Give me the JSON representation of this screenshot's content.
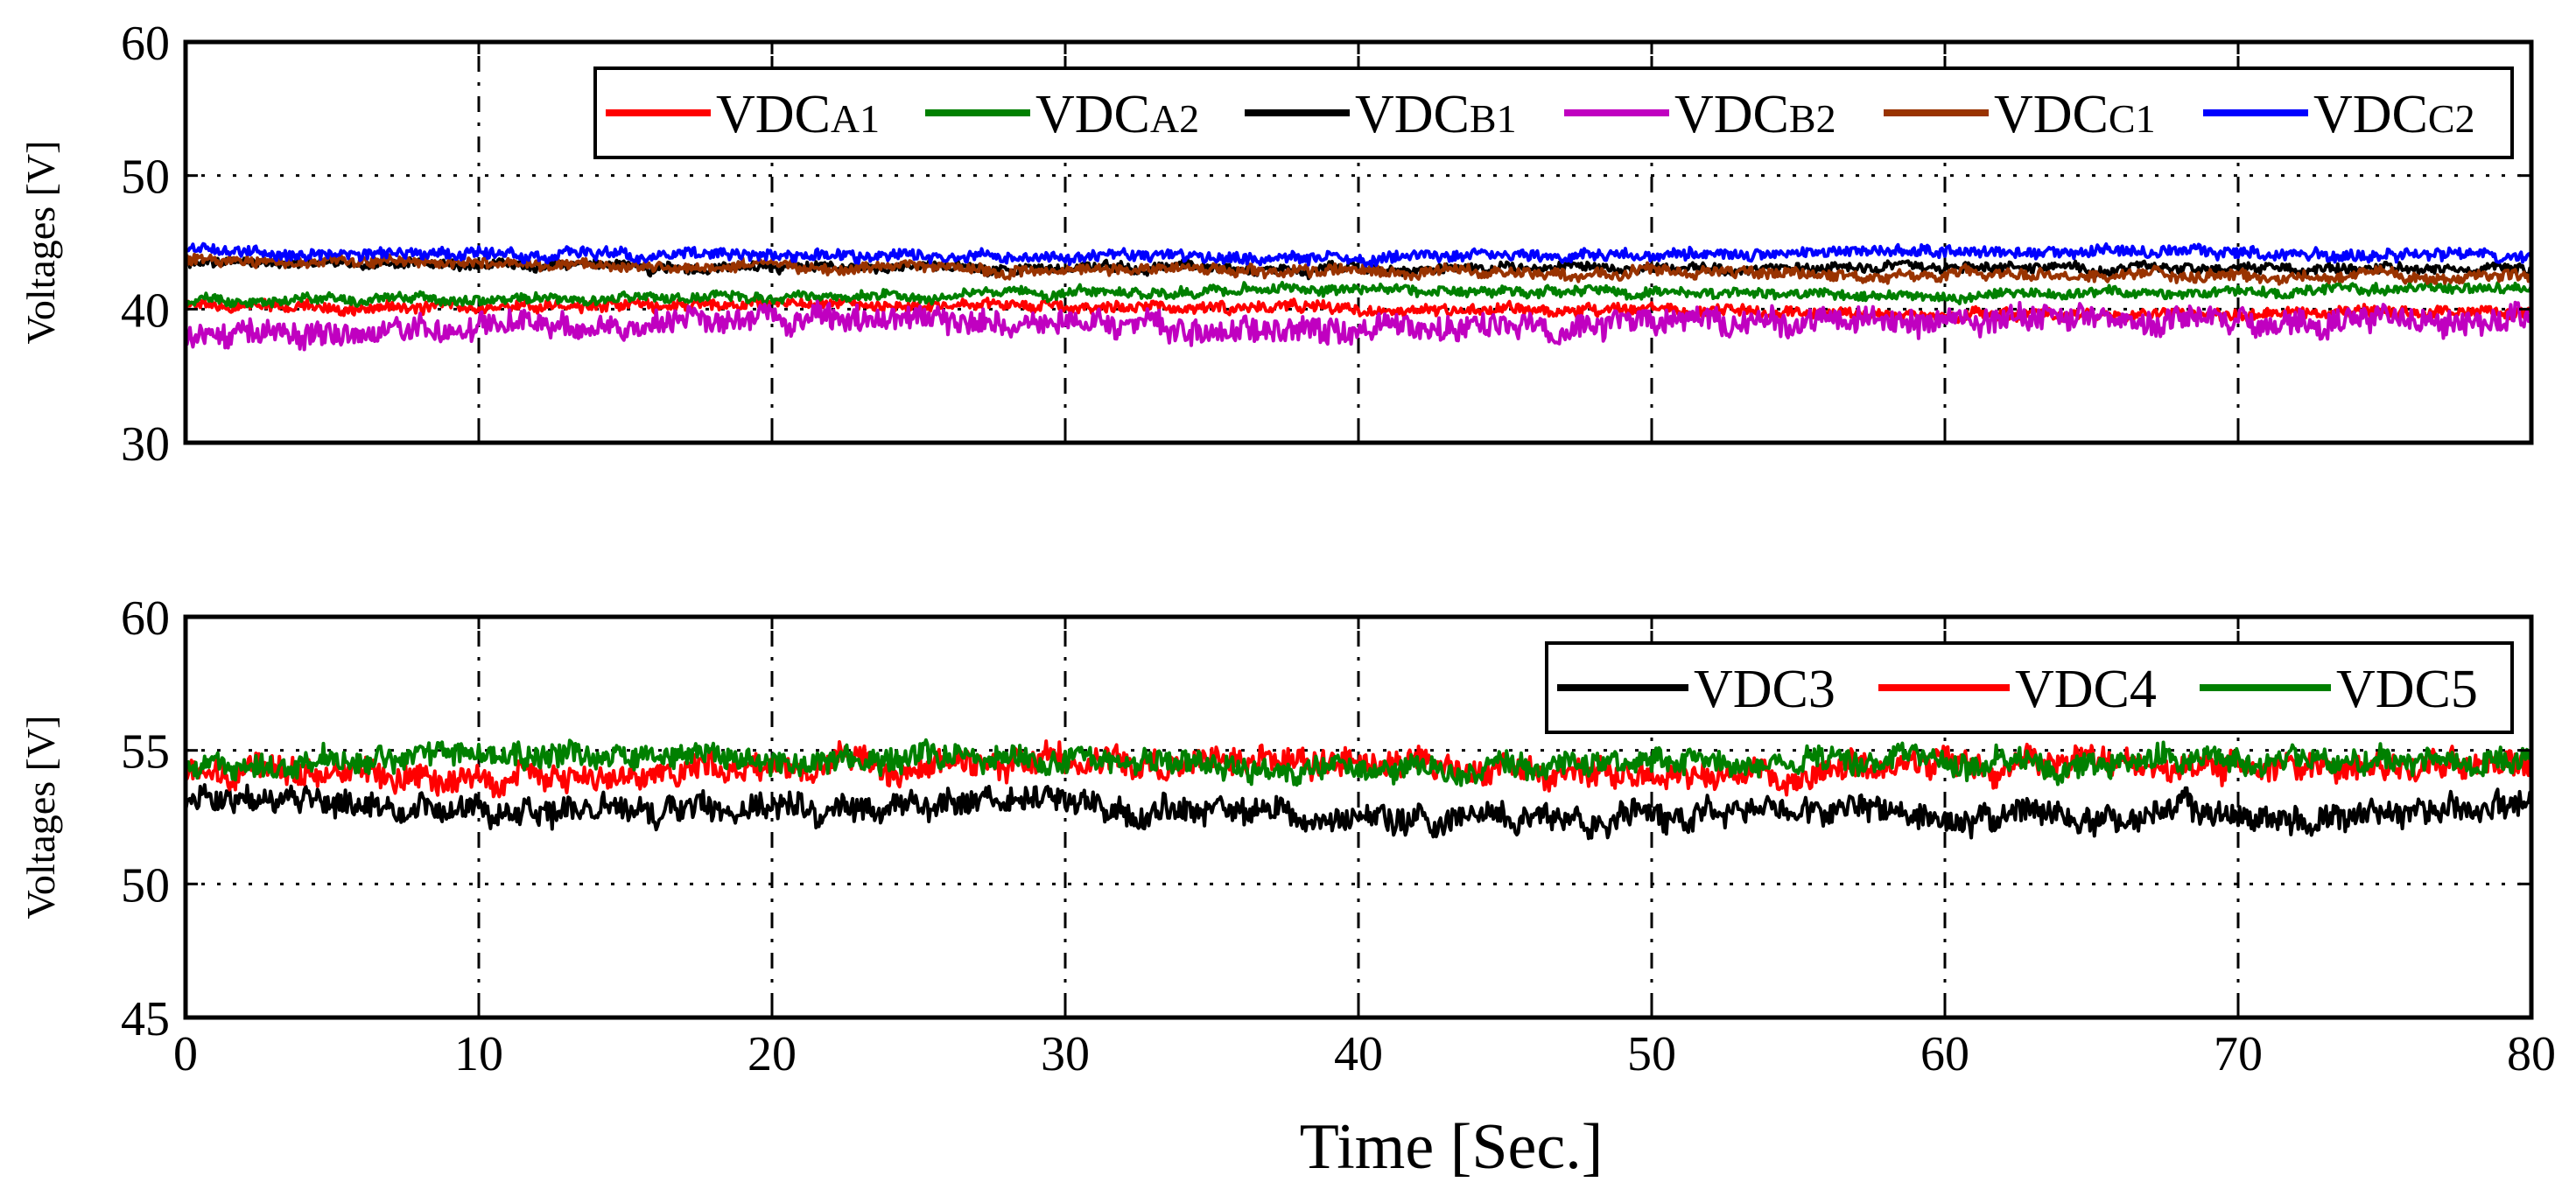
{
  "chart_data": [
    {
      "type": "line",
      "ylabel": "Voltages [V]",
      "xlim": [
        0,
        80
      ],
      "ylim": [
        30,
        60
      ],
      "xticks": [
        0,
        10,
        20,
        30,
        40,
        50,
        60,
        70,
        80
      ],
      "yticks": [
        30,
        40,
        50,
        60
      ],
      "x_grid": "dash-dot",
      "y_grid": "dotted",
      "grid": true,
      "legend_position": "top-right",
      "series": [
        {
          "name": "VDC",
          "sub": "A1",
          "color": "#ff0000",
          "mean": 40.1,
          "noise": 0.45,
          "points": [
            [
              0,
              40.1
            ],
            [
              20,
              40.3
            ],
            [
              40,
              40.1
            ],
            [
              60,
              39.6
            ],
            [
              80,
              39.8
            ]
          ]
        },
        {
          "name": "VDC",
          "sub": "A2",
          "color": "#008000",
          "mean": 40.8,
          "noise": 0.4,
          "points": [
            [
              0,
              40.6
            ],
            [
              20,
              40.9
            ],
            [
              40,
              41.6
            ],
            [
              60,
              41.0
            ],
            [
              80,
              41.6
            ]
          ]
        },
        {
          "name": "VDC",
          "sub": "B1",
          "color": "#000000",
          "mean": 43.3,
          "noise": 0.4,
          "points": [
            [
              0,
              43.4
            ],
            [
              20,
              43.2
            ],
            [
              40,
              43.0
            ],
            [
              60,
              43.1
            ],
            [
              80,
              43.0
            ]
          ]
        },
        {
          "name": "VDC",
          "sub": "B2",
          "color": "#c000c0",
          "mean": 38.8,
          "noise": 1.0,
          "points": [
            [
              0,
              37.9
            ],
            [
              20,
              39.3
            ],
            [
              40,
              38.5
            ],
            [
              60,
              39.2
            ],
            [
              80,
              39.2
            ]
          ]
        },
        {
          "name": "VDC",
          "sub": "C1",
          "color": "#993300",
          "mean": 43.0,
          "noise": 0.45,
          "points": [
            [
              0,
              43.7
            ],
            [
              20,
              43.2
            ],
            [
              40,
              42.8
            ],
            [
              60,
              42.6
            ],
            [
              80,
              42.3
            ]
          ]
        },
        {
          "name": "VDC",
          "sub": "C2",
          "color": "#0000ff",
          "mean": 44.2,
          "noise": 0.45,
          "points": [
            [
              0,
              44.3
            ],
            [
              20,
              44.0
            ],
            [
              40,
              43.9
            ],
            [
              60,
              44.3
            ],
            [
              80,
              44.0
            ]
          ]
        }
      ]
    },
    {
      "type": "line",
      "ylabel": "Voltages [V]",
      "xlabel": "Time [Sec.]",
      "xlim": [
        0,
        80
      ],
      "ylim": [
        45,
        60
      ],
      "xticks": [
        0,
        10,
        20,
        30,
        40,
        50,
        60,
        70,
        80
      ],
      "yticks": [
        45,
        50,
        55,
        60
      ],
      "x_grid": "dash-dot",
      "y_grid": "dotted",
      "grid": true,
      "legend_position": "top-right",
      "series": [
        {
          "name": "VDC3",
          "sub": "",
          "color": "#000000",
          "mean": 52.8,
          "noise": 0.55,
          "points": [
            [
              0,
              53.2
            ],
            [
              10,
              52.8
            ],
            [
              20,
              52.9
            ],
            [
              30,
              53.0
            ],
            [
              40,
              52.4
            ],
            [
              50,
              52.6
            ],
            [
              60,
              52.7
            ],
            [
              70,
              52.4
            ],
            [
              80,
              53.0
            ]
          ]
        },
        {
          "name": "VDC4",
          "sub": "",
          "color": "#ff0000",
          "mean": 54.3,
          "noise": 0.55,
          "points": [
            [
              0,
              54.3
            ],
            [
              10,
              53.8
            ],
            [
              20,
              54.5
            ],
            [
              30,
              54.5
            ],
            [
              40,
              54.6
            ],
            [
              50,
              54.0
            ],
            [
              60,
              54.4
            ],
            [
              70,
              54.3
            ],
            [
              80,
              54.6
            ]
          ]
        },
        {
          "name": "VDC5",
          "sub": "",
          "color": "#008000",
          "mean": 54.5,
          "noise": 0.5,
          "points": [
            [
              0,
              54.5
            ],
            [
              10,
              54.9
            ],
            [
              20,
              54.6
            ],
            [
              30,
              54.8
            ],
            [
              40,
              54.1
            ],
            [
              50,
              54.5
            ],
            [
              60,
              54.6
            ],
            [
              70,
              54.5
            ],
            [
              80,
              54.5
            ]
          ]
        }
      ]
    }
  ]
}
